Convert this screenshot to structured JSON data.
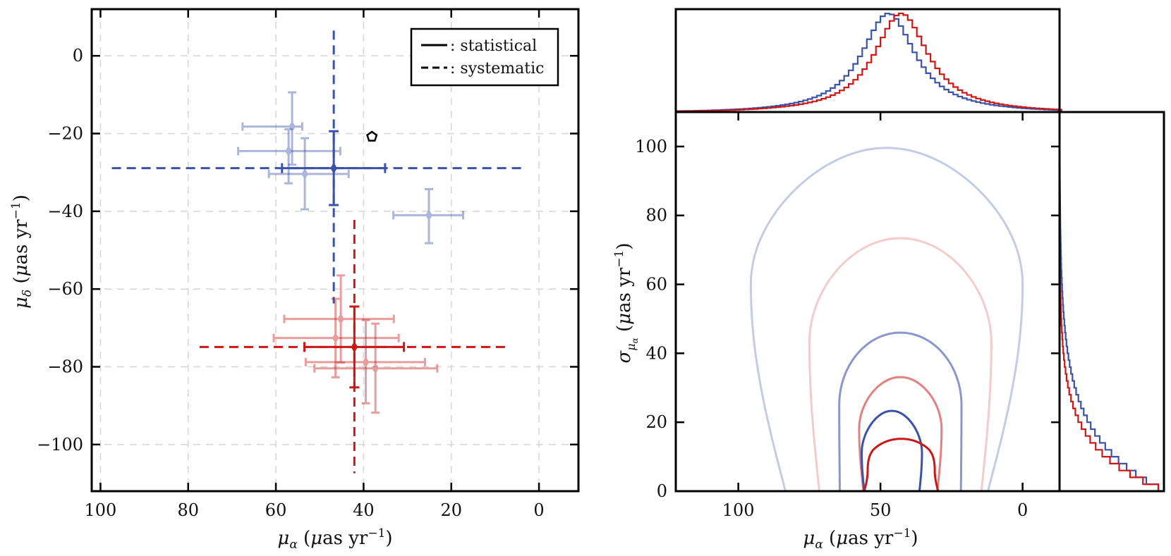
{
  "chart_data": [
    {
      "type": "scatter",
      "panel": "left",
      "xlabel": "μα (μas yr−1)",
      "ylabel": "μδ (μas yr−1)",
      "xlim": [
        102,
        -9
      ],
      "ylim": [
        -112,
        12
      ],
      "x_ticks": [
        100,
        80,
        60,
        40,
        20,
        0
      ],
      "y_ticks": [
        0,
        -20,
        -40,
        -60,
        -80,
        -100
      ],
      "x_tick_labels": [
        "100",
        "80",
        "60",
        "40",
        "20",
        "0"
      ],
      "y_tick_labels": [
        "0",
        "−20",
        "−40",
        "−60",
        "−80",
        "−100"
      ],
      "grid": true,
      "legend": {
        "placement": "top-right",
        "entries": [
          {
            "style": "solid",
            "label": ": statistical"
          },
          {
            "style": "dashed",
            "label": ": systematic"
          }
        ]
      },
      "colors": {
        "blue": "#3a52a8",
        "red": "#cc1717"
      },
      "series": [
        {
          "color": "blue",
          "points": [
            {
              "x": 56.3,
              "y": -18.2,
              "xerr": [
                11.3,
                2.3
              ],
              "yerr": [
                8.8,
                9.8
              ]
            },
            {
              "x": 57.1,
              "y": -24.5,
              "xerr": [
                11.5,
                11.8
              ],
              "yerr": [
                5.6,
                8.3
              ]
            },
            {
              "x": 53.4,
              "y": -30.4,
              "xerr": [
                8.2,
                10.0
              ],
              "yerr": [
                9.2,
                9.1
              ]
            },
            {
              "x": 25.1,
              "y": -41.0,
              "xerr": [
                8.1,
                7.8
              ],
              "yerr": [
                6.7,
                7.2
              ]
            }
          ],
          "combined": {
            "x": 46.8,
            "y": -28.9,
            "stat_xerr": [
              11.8,
              11.7
            ],
            "stat_yerr": [
              9.5,
              9.5
            ],
            "sys_x": [
              97.4,
              3.6
            ],
            "sys_y": [
              6.5,
              -63.7
            ]
          }
        },
        {
          "color": "red",
          "points": [
            {
              "x": 45.2,
              "y": -67.7,
              "xerr": [
                12.9,
                12.1
              ],
              "yerr": [
                11.2,
                11.2
              ]
            },
            {
              "x": 46.4,
              "y": -72.6,
              "xerr": [
                14.1,
                14.4
              ],
              "yerr": [
                10.1,
                10.1
              ]
            },
            {
              "x": 39.5,
              "y": -78.8,
              "xerr": [
                13.7,
                13.5
              ],
              "yerr": [
                10.8,
                10.6
              ]
            },
            {
              "x": 37.3,
              "y": -80.4,
              "xerr": [
                13.9,
                14.1
              ],
              "yerr": [
                11.5,
                11.4
              ]
            }
          ],
          "combined": {
            "x": 42.1,
            "y": -74.9,
            "stat_xerr": [
              11.4,
              11.3
            ],
            "stat_yerr": [
              10.4,
              10.4
            ],
            "sys_x": [
              77.4,
              6.6
            ],
            "sys_y": [
              -42.2,
              -107.4
            ]
          }
        }
      ],
      "marker_pentagon": {
        "x": 38.1,
        "y": -20.8
      }
    },
    {
      "type": "line",
      "panel": "right-main",
      "xlabel": "μα (μas yr−1)",
      "ylabel": "σμα (μas yr−1)",
      "xlim": [
        122,
        -13
      ],
      "ylim": [
        0,
        110
      ],
      "x_ticks": [
        100,
        50,
        0
      ],
      "y_ticks": [
        0,
        20,
        40,
        60,
        80,
        100
      ],
      "x_tick_labels": [
        "100",
        "50",
        "0"
      ],
      "y_tick_labels": [
        "0",
        "20",
        "40",
        "60",
        "80",
        "100"
      ],
      "grid": false,
      "contours": [
        {
          "color": "#3a52a8",
          "opacity": 0.3,
          "cx": 47.8,
          "half_width_at_0": 35.6,
          "top": 99.6,
          "max_half_width": 47.8,
          "at_sigma": 60
        },
        {
          "color": "#cc1717",
          "opacity": 0.22,
          "cx": 43.0,
          "half_width_at_0": 28.5,
          "top": 73.4,
          "max_half_width": 32.0,
          "at_sigma": 43
        },
        {
          "color": "#3a52a8",
          "opacity": 0.6,
          "cx": 43.0,
          "half_width_at_0": 21.3,
          "top": 46.0,
          "max_half_width": 21.5,
          "at_sigma": 25
        },
        {
          "color": "#cc1717",
          "opacity": 0.55,
          "cx": 43.0,
          "half_width_at_0": 13.0,
          "top": 33.1,
          "max_half_width": 14.5,
          "at_sigma": 18
        },
        {
          "color": "#3a52a8",
          "opacity": 1.0,
          "cx": 46.0,
          "half_width_at_0": 9.7,
          "top": 23.3,
          "max_half_width": 10.6,
          "at_sigma": 11
        },
        {
          "color": "#cc1717",
          "opacity": 1.0,
          "cx": 42.7,
          "half_width_at_0": 13.0,
          "top": 15.2,
          "max_half_width": 11.8,
          "at_sigma": 6
        }
      ]
    },
    {
      "type": "line",
      "panel": "right-top-marginal",
      "series": [
        {
          "color": "#3a52a8",
          "peak_x": 48.0,
          "width": 11.0
        },
        {
          "color": "#cc1717",
          "peak_x": 43.5,
          "width": 11.0
        }
      ]
    },
    {
      "type": "line",
      "panel": "right-side-marginal",
      "series": [
        {
          "color": "#3a52a8",
          "scale": 17.0
        },
        {
          "color": "#cc1717",
          "scale": 13.0
        }
      ]
    }
  ]
}
